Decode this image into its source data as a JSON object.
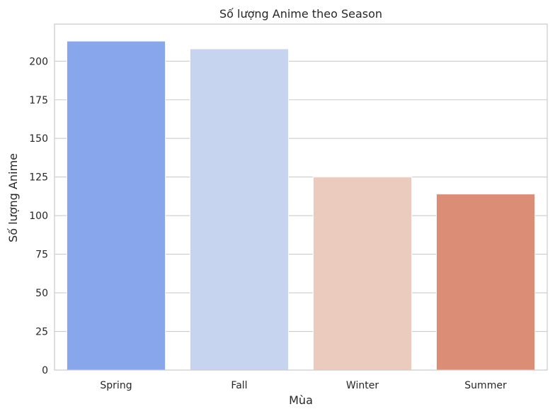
{
  "chart_data": {
    "type": "bar",
    "title": "Số lượng Anime theo Season",
    "xlabel": "Mùa",
    "ylabel": "Số lượng Anime",
    "categories": [
      "Spring",
      "Fall",
      "Winter",
      "Summer"
    ],
    "values": [
      213,
      208,
      125,
      114
    ],
    "colors": [
      "#87a6eb",
      "#c6d4f0",
      "#eacbbd",
      "#dc8d75"
    ],
    "ylim": [
      0,
      224
    ],
    "yticks": [
      0,
      25,
      50,
      75,
      100,
      125,
      150,
      175,
      200
    ],
    "grid": "horizontal",
    "background": "#ffffff",
    "grid_color": "#cccccc",
    "spine_color": "#cccccc"
  }
}
